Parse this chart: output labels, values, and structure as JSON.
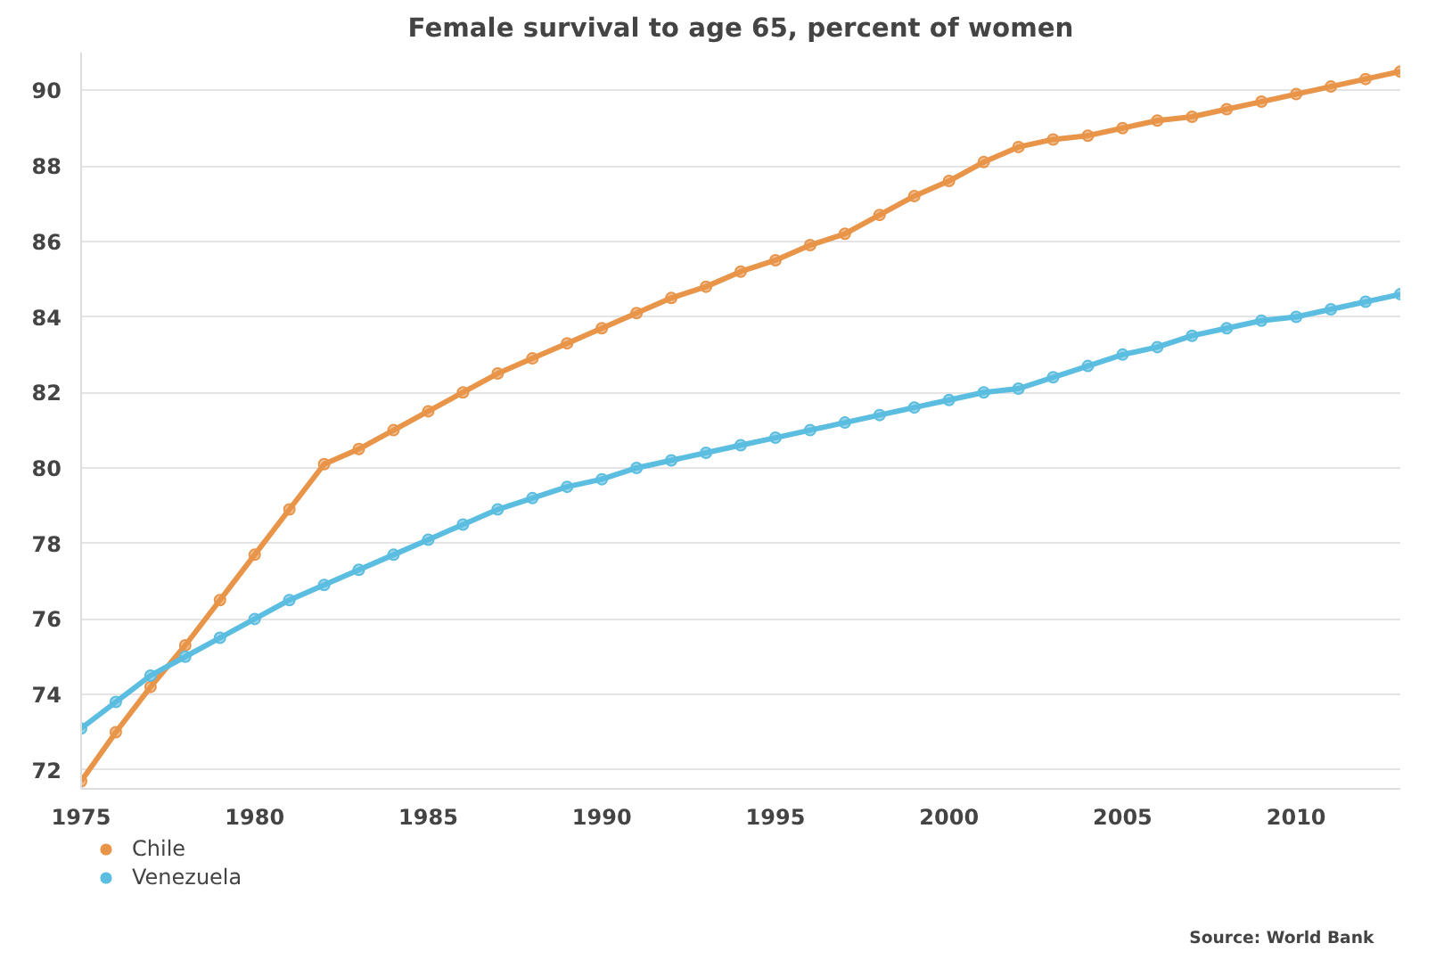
{
  "chart_data": {
    "type": "line",
    "title": "Female survival to age 65, percent of women",
    "x": [
      1975,
      1976,
      1977,
      1978,
      1979,
      1980,
      1981,
      1982,
      1983,
      1984,
      1985,
      1986,
      1987,
      1988,
      1989,
      1990,
      1991,
      1992,
      1993,
      1994,
      1995,
      1996,
      1997,
      1998,
      1999,
      2000,
      2001,
      2002,
      2003,
      2004,
      2005,
      2006,
      2007,
      2008,
      2009,
      2010,
      2011,
      2012,
      2013
    ],
    "series": [
      {
        "name": "Chile",
        "color": "#e8954a",
        "values": [
          71.7,
          73.0,
          74.2,
          75.3,
          76.5,
          77.7,
          78.9,
          80.1,
          80.5,
          81.0,
          81.5,
          82.0,
          82.5,
          82.9,
          83.3,
          83.7,
          84.1,
          84.5,
          84.8,
          85.2,
          85.5,
          85.9,
          86.2,
          86.7,
          87.2,
          87.6,
          88.1,
          88.5,
          88.7,
          88.8,
          89.0,
          89.2,
          89.3,
          89.5,
          89.7,
          89.9,
          90.1,
          90.3,
          90.5
        ]
      },
      {
        "name": "Venezuela",
        "color": "#5bbde0",
        "values": [
          73.1,
          73.8,
          74.5,
          75.0,
          75.5,
          76.0,
          76.5,
          76.9,
          77.3,
          77.7,
          78.1,
          78.5,
          78.9,
          79.2,
          79.5,
          79.7,
          80.0,
          80.2,
          80.4,
          80.6,
          80.8,
          81.0,
          81.2,
          81.4,
          81.6,
          81.8,
          82.0,
          82.1,
          82.4,
          82.7,
          83.0,
          83.2,
          83.5,
          83.7,
          83.9,
          84.0,
          84.2,
          84.4,
          84.6
        ]
      }
    ],
    "xlim": [
      1975,
      2013
    ],
    "xticks": [
      1975,
      1980,
      1985,
      1990,
      1995,
      2000,
      2005,
      2010
    ],
    "ylim": [
      71.5,
      91
    ],
    "yticks": [
      72,
      74,
      76,
      78,
      80,
      82,
      84,
      86,
      88,
      90
    ],
    "grid": "y",
    "legend": "bottom left",
    "marker": "circle",
    "line_style": "solid",
    "annotations": [
      "Source: World Bank"
    ]
  }
}
